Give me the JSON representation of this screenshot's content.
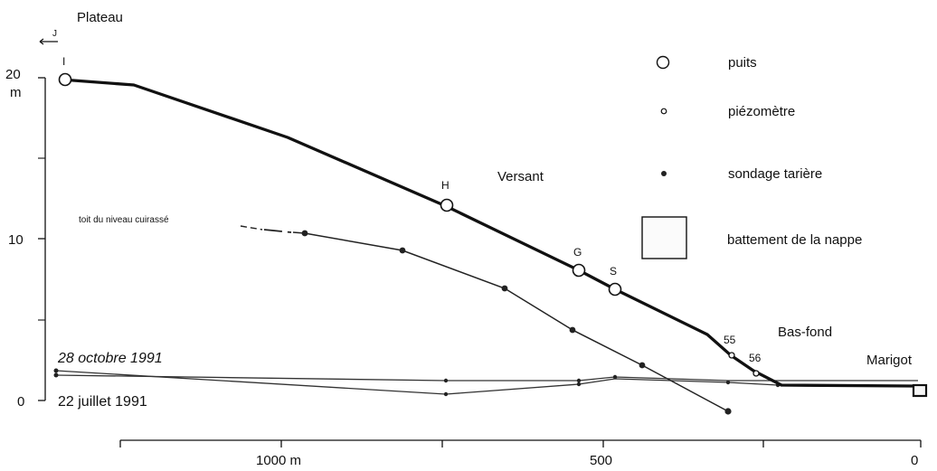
{
  "figure": {
    "arrow_label": "J",
    "legend": {
      "well": "puits",
      "piezometer": "piézomètre",
      "auger": "sondage tarière",
      "fluctuation": "battement de la nappe"
    },
    "zones": {
      "plateau": "Plateau",
      "versant": "Versant",
      "bas_fond": "Bas-fond",
      "marigot": "Marigot"
    },
    "cuirasse_label": "toit du niveau cuirassé",
    "dates": {
      "october": "28 octobre 1991",
      "july": "22 juillet 1991"
    },
    "y_axis": {
      "t20": "20",
      "unit": "m",
      "t10": "10",
      "t0": "0"
    },
    "x_axis": {
      "t1000": "1000 m",
      "t500": "500",
      "t0": "0"
    },
    "points": [
      {
        "id": "I",
        "type": "well"
      },
      {
        "id": "H",
        "type": "well"
      },
      {
        "id": "G",
        "type": "well"
      },
      {
        "id": "S",
        "type": "well"
      },
      {
        "id": "55",
        "type": "piezometer"
      },
      {
        "id": "56",
        "type": "piezometer"
      }
    ]
  },
  "chart_data": {
    "type": "line",
    "x_unit": "m (distance to marigot)",
    "y_unit": "m",
    "x_reversed": true,
    "xlim": [
      1250,
      0
    ],
    "ylim": [
      0,
      20
    ],
    "series": [
      {
        "key": "ground",
        "x": [
          1240,
          1170,
          1000,
          850,
          740,
          620,
          540,
          480,
          400,
          320,
          290,
          250,
          210,
          150,
          80,
          0
        ],
        "y": [
          19.8,
          19.4,
          16.8,
          14.2,
          12.1,
          9.6,
          8.1,
          6.9,
          5.1,
          3.9,
          3.0,
          1.9,
          1.0,
          1.0,
          1.0,
          0.9
        ]
      },
      {
        "key": "cuirasse",
        "x": [
          950,
          800,
          650,
          550,
          420,
          330,
          280
        ],
        "y": [
          10.5,
          9.4,
          7.1,
          4.6,
          2.3,
          0.7,
          -0.7
        ]
      },
      {
        "key": "water_october",
        "x": [
          1240,
          740,
          560,
          480,
          280,
          200,
          150,
          100,
          50,
          0
        ],
        "y": [
          1.8,
          0.5,
          1.1,
          1.5,
          1.4,
          1.0,
          0.9,
          0.9,
          0.9,
          0.9
        ]
      },
      {
        "key": "water_july",
        "x": [
          1240,
          740,
          560,
          480,
          280,
          150,
          0
        ],
        "y": [
          1.4,
          -0.3,
          -0.3,
          -0.1,
          -0.3,
          -0.3,
          -0.3
        ]
      }
    ],
    "markers": [
      {
        "label": "I",
        "type": "well",
        "x": 1240,
        "y": 19.8
      },
      {
        "label": "H",
        "type": "well",
        "x": 740,
        "y": 12.1
      },
      {
        "label": "G",
        "type": "well",
        "x": 540,
        "y": 8.1
      },
      {
        "label": "S",
        "type": "well",
        "x": 480,
        "y": 6.9
      },
      {
        "label": "55",
        "type": "piezometer",
        "x": 290,
        "y": 2.9
      },
      {
        "label": "56",
        "type": "piezometer",
        "x": 250,
        "y": 1.8
      },
      {
        "label": "",
        "type": "auger",
        "x": 950,
        "y": 10.5
      },
      {
        "label": "",
        "type": "auger",
        "x": 800,
        "y": 9.4
      },
      {
        "label": "",
        "type": "auger",
        "x": 650,
        "y": 7.1
      },
      {
        "label": "",
        "type": "auger",
        "x": 550,
        "y": 4.6
      },
      {
        "label": "",
        "type": "auger",
        "x": 420,
        "y": 2.3
      },
      {
        "label": "",
        "type": "auger",
        "x": 280,
        "y": -0.7
      }
    ],
    "x_ticks": [
      1250,
      1000,
      750,
      500,
      250,
      0
    ],
    "y_ticks": [
      0,
      5,
      10,
      15,
      20
    ]
  }
}
